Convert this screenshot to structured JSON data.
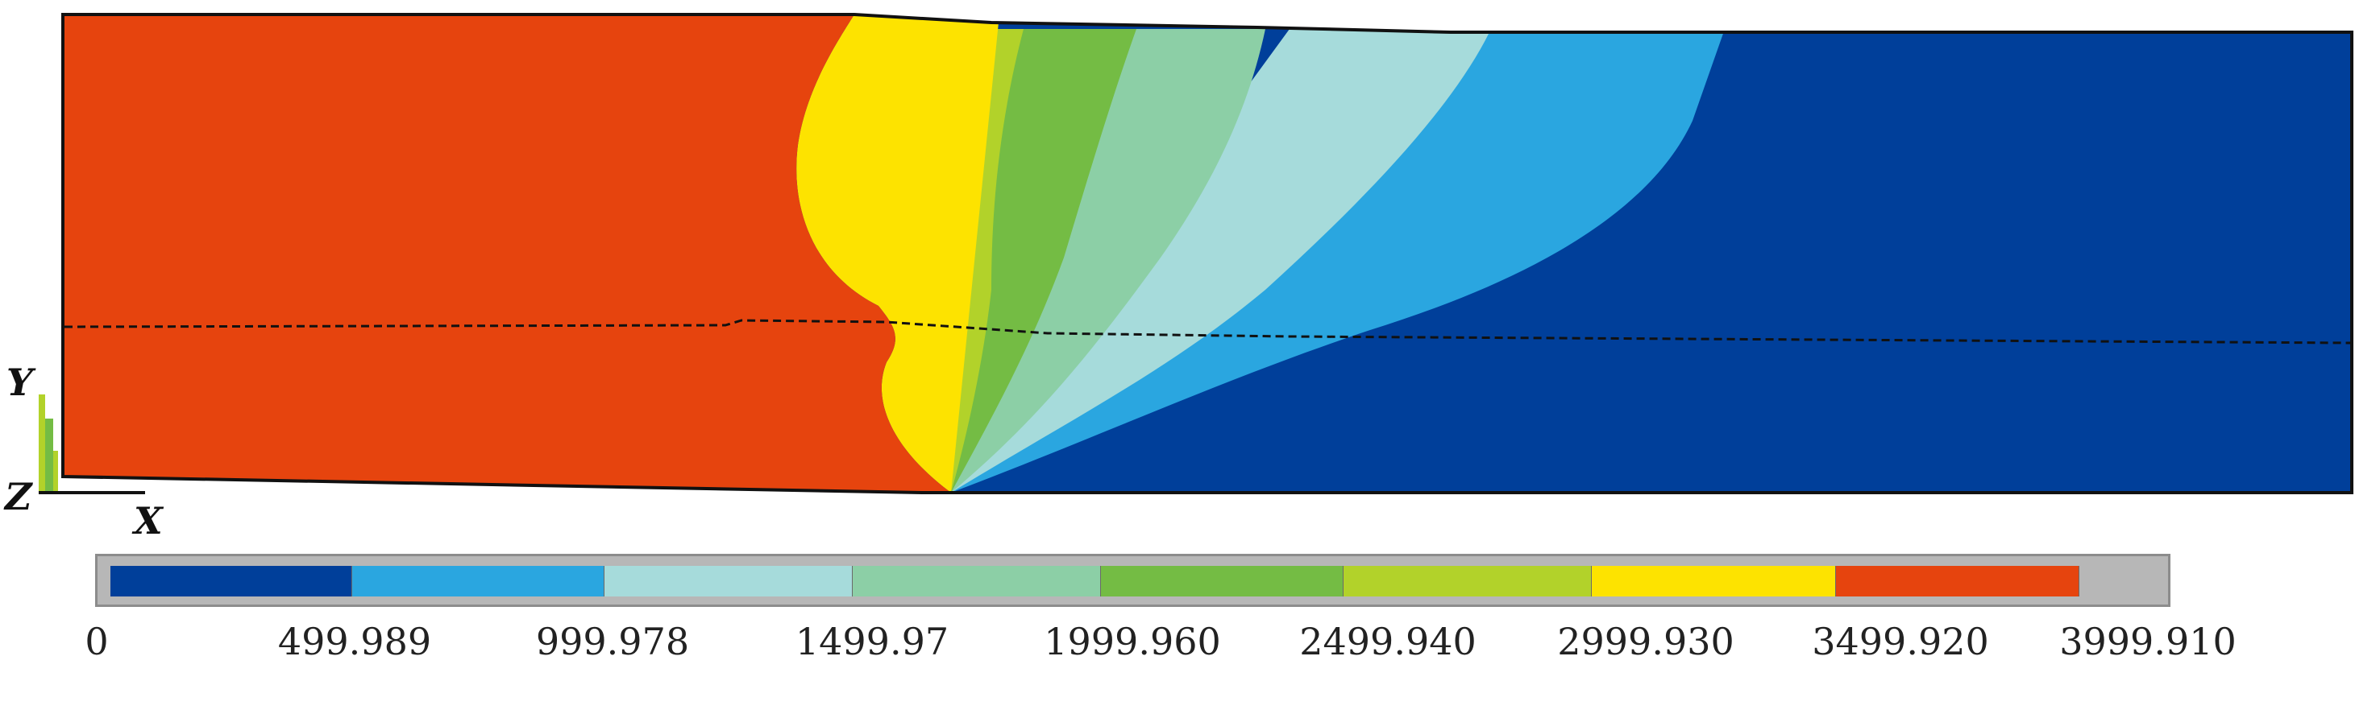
{
  "contour_plot": {
    "colormap": [
      "#003f9a",
      "#2aa6e0",
      "#a6dbdb",
      "#8ccfa6",
      "#74bc44",
      "#b2d22a",
      "#fde300",
      "#e6440e"
    ],
    "background_color": "#ffffff",
    "outline_color": "#111111"
  },
  "axes_triad": {
    "y_label": "Y",
    "z_label": "Z",
    "x_label": "X"
  },
  "legend": {
    "tick_labels": [
      "0",
      "499.989",
      "999.978",
      "1499.97",
      "1999.960",
      "2499.940",
      "2999.930",
      "3499.920",
      "3999.910"
    ]
  }
}
